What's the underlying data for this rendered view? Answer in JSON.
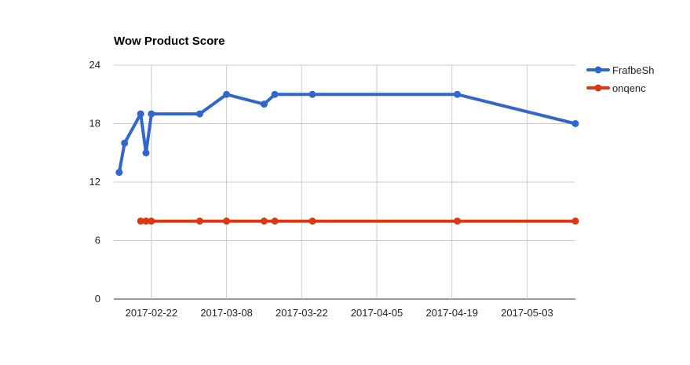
{
  "chart_data": {
    "type": "line",
    "title": "Wow Product Score",
    "xlabel": "",
    "ylabel": "",
    "ylim": [
      0,
      24
    ],
    "yticks": [
      0,
      6,
      12,
      18,
      24
    ],
    "xlim": [
      "2017-02-15",
      "2017-05-12"
    ],
    "xticks": [
      "2017-02-22",
      "2017-03-08",
      "2017-03-22",
      "2017-04-05",
      "2017-04-19",
      "2017-05-03"
    ],
    "grid": true,
    "legend": "right",
    "series": [
      {
        "name": "FrafbeSh",
        "color": "#3366cc",
        "points": [
          {
            "x": "2017-02-16",
            "y": 13
          },
          {
            "x": "2017-02-17",
            "y": 16
          },
          {
            "x": "2017-02-20",
            "y": 19
          },
          {
            "x": "2017-02-21",
            "y": 15
          },
          {
            "x": "2017-02-22",
            "y": 19
          },
          {
            "x": "2017-03-03",
            "y": 19
          },
          {
            "x": "2017-03-08",
            "y": 21
          },
          {
            "x": "2017-03-15",
            "y": 20
          },
          {
            "x": "2017-03-17",
            "y": 21
          },
          {
            "x": "2017-03-24",
            "y": 21
          },
          {
            "x": "2017-04-20",
            "y": 21
          },
          {
            "x": "2017-05-12",
            "y": 18
          }
        ]
      },
      {
        "name": "onqenc",
        "color": "#dc3912",
        "points": [
          {
            "x": "2017-02-20",
            "y": 8
          },
          {
            "x": "2017-02-21",
            "y": 8
          },
          {
            "x": "2017-02-22",
            "y": 8
          },
          {
            "x": "2017-03-03",
            "y": 8
          },
          {
            "x": "2017-03-08",
            "y": 8
          },
          {
            "x": "2017-03-15",
            "y": 8
          },
          {
            "x": "2017-03-17",
            "y": 8
          },
          {
            "x": "2017-03-24",
            "y": 8
          },
          {
            "x": "2017-04-20",
            "y": 8
          },
          {
            "x": "2017-05-12",
            "y": 8
          }
        ]
      }
    ]
  }
}
